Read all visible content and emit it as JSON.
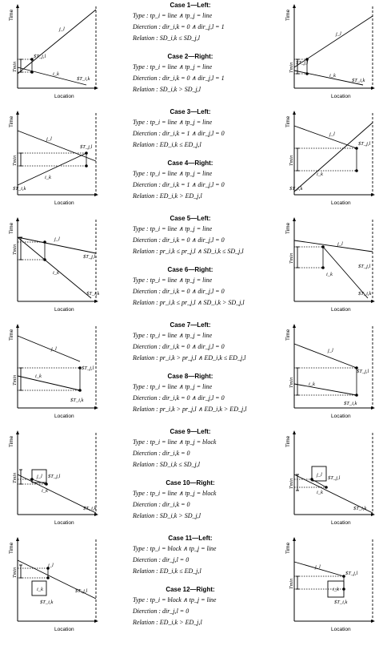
{
  "axes": {
    "time": "Time",
    "location": "Location",
    "tmin": "Tmin"
  },
  "rows": [
    {
      "cases": [
        {
          "title": "Case 1—Left:",
          "type": "Type        : tp_i = line ∧ tp_j = line",
          "direction": "Dierction : dir_i,k = 0 ∧ dir_j,l = 1",
          "relation": "Relation  : SD_i,k ≤ SD_j,l"
        },
        {
          "title": "Case 2—Right:",
          "type": "Type        : tp_i = line ∧ tp_j = line",
          "direction": "Dierction : dir_i,k = 0 ∧ dir_j,l = 1",
          "relation": "Relation  : SD_i,k > SD_j,l"
        }
      ],
      "left": {
        "j": "j_l",
        "i": "i_k",
        "pj": "$T_j,l",
        "pi": "$T_i,k"
      },
      "right": {
        "j": "j_l",
        "i": "i_k",
        "pj": "$T_j,l",
        "pi": "$T_i,k"
      }
    },
    {
      "cases": [
        {
          "title": "Case 3—Left:",
          "type": "Type        : tp_i = line ∧ tp_j = line",
          "direction": "Dierction : dir_i,k = 1 ∧ dir_j,l = 0",
          "relation": "Relation  : ED_i,k ≤ ED_j,l"
        },
        {
          "title": "Case 4—Right:",
          "type": "Type        : tp_i = line ∧ tp_j = line",
          "direction": "Dierction : dir_i,k = 1 ∧ dir_j,l = 0",
          "relation": "Relation  : ED_i,k > ED_j,l"
        }
      ],
      "left": {
        "j": "j_l",
        "i": "i_k",
        "pj": "$T_j,l",
        "pi": "$T_i,k"
      },
      "right": {
        "j": "j_l",
        "i": "i_k",
        "pj": "$T_j,l",
        "pi": "$T_i,k"
      }
    },
    {
      "cases": [
        {
          "title": "Case 5—Left:",
          "type": "Type        : tp_i = line ∧ tp_j = line",
          "direction": "Dierction : dir_i,k = 0 ∧ dir_j,l = 0",
          "relation": "Relation  : pr_i,k ≤ pr_j,l ∧ SD_i,k ≤ SD_j,l"
        },
        {
          "title": "Case 6—Right:",
          "type": "Type        : tp_i = line ∧ tp_j = line",
          "direction": "Dierction : dir_i,k = 0 ∧ dir_j,l = 0",
          "relation": "Relation  : pr_i,k ≤ pr_j,l ∧ SD_i,k > SD_j,l"
        }
      ],
      "left": {
        "j": "j_l",
        "i": "i_k",
        "pj": "$T_j,l",
        "pi": "$T_i,k"
      },
      "right": {
        "j": "j_l",
        "i": "i_k",
        "pj": "$T_j,l",
        "pi": "$T_i,k"
      }
    },
    {
      "cases": [
        {
          "title": "Case 7—Left:",
          "type": "Type        : tp_i = line ∧ tp_j = line",
          "direction": "Dierction : dir_i,k = 0 ∧ dir_j,l = 0",
          "relation": "Relation  : pr_i,k > pr_j,l ∧ ED_i,k ≤ ED_j,l"
        },
        {
          "title": "Case 8—Right:",
          "type": "Type        : tp_i = line ∧ tp_j = line",
          "direction": "Dierction : dir_i,k = 0 ∧ dir_j,l = 0",
          "relation": "Relation  : pr_i,k > pr_j,l ∧ ED_i,k > ED_j,l"
        }
      ],
      "left": {
        "j": "j_l",
        "i": "i_k",
        "pj": "$T_j,l",
        "pi": "$T_i,k"
      },
      "right": {
        "j": "j_l",
        "i": "i_k",
        "pj": "$T_j,l",
        "pi": "$T_i,k"
      }
    },
    {
      "cases": [
        {
          "title": "Case 9—Left:",
          "type": "Type        : tp_i = line ∧ tp_j = block",
          "direction": "Dierction : dir_i,k = 0",
          "relation": "Relation  : SD_i,k ≤ SD_j,l"
        },
        {
          "title": "Case 10—Right:",
          "type": "Type        : tp_i = line ∧ tp_j = block",
          "direction": "Dierction : dir_i,k = 0",
          "relation": "Relation  : SD_i,k > SD_j,l"
        }
      ],
      "left": {
        "j": "j_l",
        "i": "i_k",
        "pj": "$T_j,l",
        "pi": "$T_i,k"
      },
      "right": {
        "j": "j_l",
        "i": "i_k",
        "pj": "$T_j,l",
        "pi": "$T_i,k"
      }
    },
    {
      "cases": [
        {
          "title": "Case 11—Left:",
          "type": "Type        : tp_i = block ∧ tp_j = line",
          "direction": "Dierction : dir_j,l = 0",
          "relation": "Relation  : ED_i,k ≤ ED_j,l"
        },
        {
          "title": "Case 12—Right:",
          "type": "Type        : tp_i = block ∧ tp_j = line",
          "direction": "Dierction : dir_j,l = 0",
          "relation": "Relation  : ED_i,k > ED_j,l"
        }
      ],
      "left": {
        "j": "j_l",
        "i": "i_k",
        "pj": "$T_j,l",
        "pi": "$T_i,k"
      },
      "right": {
        "j": "j_l",
        "i": "i_k",
        "pj": "$T_j,l",
        "pi": "$T_i,k"
      }
    }
  ]
}
